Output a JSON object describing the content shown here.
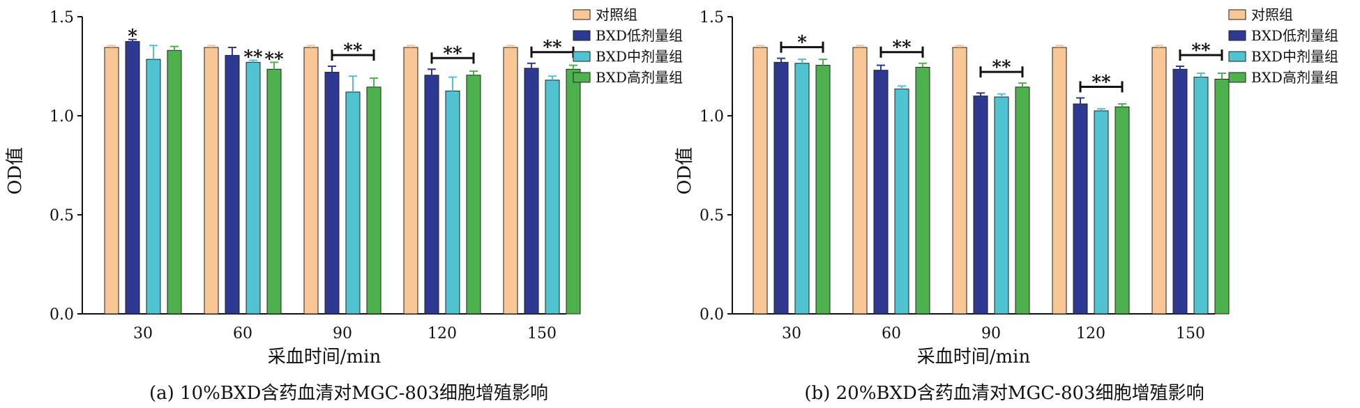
{
  "chart_data": [
    {
      "type": "bar",
      "title": "(a) 10%BXD含药血清对MGC-803细胞增殖影响",
      "xlabel": "采血时间/min",
      "ylabel": "OD值",
      "ylim": [
        0,
        1.5
      ],
      "yticks": [
        "0.0",
        "0.5",
        "1.0",
        "1.5"
      ],
      "categories": [
        "30",
        "60",
        "90",
        "120",
        "150"
      ],
      "legend_position": "top-right",
      "series": [
        {
          "name": "对照组",
          "color": "#f9c696",
          "values": [
            1.345,
            1.345,
            1.345,
            1.345,
            1.345
          ],
          "errors": [
            0.01,
            0.01,
            0.01,
            0.01,
            0.01
          ]
        },
        {
          "name": "BXD低剂量组",
          "color": "#2e3a92",
          "values": [
            1.375,
            1.305,
            1.22,
            1.205,
            1.24
          ],
          "errors": [
            0.01,
            0.04,
            0.03,
            0.03,
            0.025
          ]
        },
        {
          "name": "BXD中剂量组",
          "color": "#4fc3cf",
          "values": [
            1.285,
            1.27,
            1.12,
            1.125,
            1.18
          ],
          "errors": [
            0.07,
            0.01,
            0.08,
            0.07,
            0.02
          ]
        },
        {
          "name": "BXD高剂量组",
          "color": "#4db24d",
          "values": [
            1.33,
            1.235,
            1.145,
            1.205,
            1.235
          ],
          "errors": [
            0.02,
            0.035,
            0.045,
            0.02,
            0.02
          ]
        }
      ],
      "annotations": [
        {
          "label": "*",
          "category": "30",
          "series": 1,
          "type": "single"
        },
        {
          "label": "**",
          "category": "60",
          "series": 2,
          "type": "single"
        },
        {
          "label": "**",
          "category": "60",
          "series": 3,
          "type": "single"
        },
        {
          "label": "**",
          "category": "90",
          "type": "bracket"
        },
        {
          "label": "**",
          "category": "120",
          "type": "bracket"
        },
        {
          "label": "**",
          "category": "150",
          "type": "bracket"
        }
      ]
    },
    {
      "type": "bar",
      "title": "(b) 20%BXD含药血清对MGC-803细胞增殖影响",
      "xlabel": "采血时间/min",
      "ylabel": "OD值",
      "ylim": [
        0,
        1.5
      ],
      "yticks": [
        "0.0",
        "0.5",
        "1.0",
        "1.5"
      ],
      "categories": [
        "30",
        "60",
        "90",
        "120",
        "150"
      ],
      "legend_position": "top-right",
      "series": [
        {
          "name": "对照组",
          "color": "#f9c696",
          "values": [
            1.345,
            1.345,
            1.345,
            1.345,
            1.345
          ],
          "errors": [
            0.01,
            0.01,
            0.01,
            0.01,
            0.01
          ]
        },
        {
          "name": "BXD低剂量组",
          "color": "#2e3a92",
          "values": [
            1.27,
            1.23,
            1.1,
            1.06,
            1.235
          ],
          "errors": [
            0.02,
            0.025,
            0.015,
            0.03,
            0.015
          ]
        },
        {
          "name": "BXD中剂量组",
          "color": "#4fc3cf",
          "values": [
            1.265,
            1.135,
            1.095,
            1.025,
            1.195
          ],
          "errors": [
            0.02,
            0.015,
            0.015,
            0.01,
            0.02
          ]
        },
        {
          "name": "BXD高剂量组",
          "color": "#4db24d",
          "values": [
            1.255,
            1.245,
            1.145,
            1.045,
            1.185
          ],
          "errors": [
            0.03,
            0.02,
            0.02,
            0.015,
            0.03
          ]
        }
      ],
      "annotations": [
        {
          "label": "*",
          "category": "30",
          "type": "bracket"
        },
        {
          "label": "**",
          "category": "60",
          "type": "bracket"
        },
        {
          "label": "**",
          "category": "90",
          "type": "bracket"
        },
        {
          "label": "**",
          "category": "120",
          "type": "bracket"
        },
        {
          "label": "**",
          "category": "150",
          "type": "bracket"
        }
      ]
    }
  ]
}
